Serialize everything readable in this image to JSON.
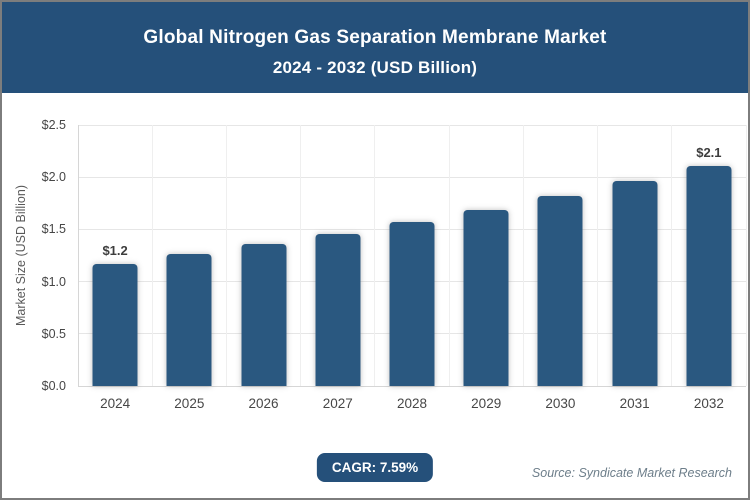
{
  "header": {
    "title_line1": "Global Nitrogen Gas Separation Membrane Market",
    "title_line2": "2024 - 2032 (USD Billion)"
  },
  "chart_data": {
    "type": "bar",
    "title": "Global Nitrogen Gas Separation Membrane Market 2024 - 2032 (USD Billion)",
    "xlabel": "",
    "ylabel": "Market Size (USD Billion)",
    "ylim": [
      0,
      2.5
    ],
    "grid": true,
    "legend": "none",
    "categories": [
      "2024",
      "2025",
      "2026",
      "2027",
      "2028",
      "2029",
      "2030",
      "2031",
      "2032"
    ],
    "values": [
      1.17,
      1.26,
      1.36,
      1.46,
      1.57,
      1.69,
      1.82,
      1.96,
      2.11
    ],
    "point_labels": [
      "$1.2",
      null,
      null,
      null,
      null,
      null,
      null,
      null,
      "$2.1"
    ],
    "y_ticks": [
      {
        "label": "$0.0",
        "value": 0
      },
      {
        "label": "$0.5",
        "value": 0.5
      },
      {
        "label": "$1.0",
        "value": 1.0
      },
      {
        "label": "$1.5",
        "value": 1.5
      },
      {
        "label": "$2.0",
        "value": 2.0
      },
      {
        "label": "$2.5",
        "value": 2.5
      }
    ]
  },
  "footer": {
    "cagr_label": "CAGR: 7.59%",
    "source": "Source: Syndicate Market Research"
  },
  "colors": {
    "header_bg": "#25507A",
    "badge_bg": "#25507A",
    "bar": "#2A5880",
    "frame_border": "#7D7D7D",
    "gridline": "#E6E6E6",
    "axis_line": "#D6D6D6",
    "tick_text": "#464646",
    "source_text": "#6D7E8A"
  }
}
